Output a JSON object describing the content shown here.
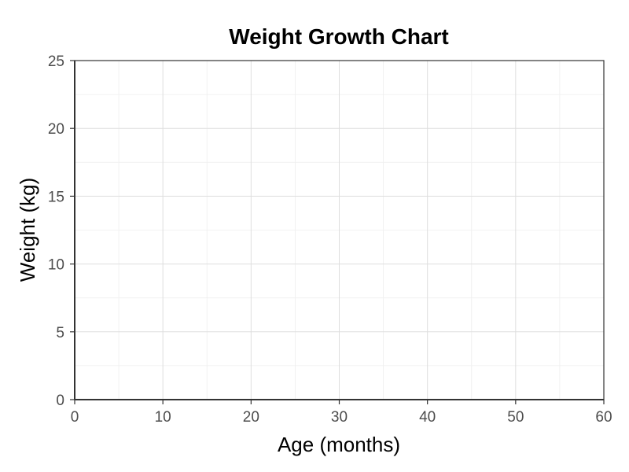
{
  "chart_data": {
    "type": "line",
    "title": "Weight Growth Chart",
    "xlabel": "Age (months)",
    "ylabel": "Weight (kg)",
    "xlim": [
      0,
      60
    ],
    "ylim": [
      0,
      25
    ],
    "x_ticks": [
      "0",
      "10",
      "20",
      "30",
      "40",
      "50",
      "60"
    ],
    "y_ticks": [
      "0",
      "5",
      "10",
      "15",
      "20",
      "25"
    ],
    "series": [],
    "grid": true,
    "legend": "none"
  },
  "colors": {
    "background": "#ffffff",
    "grid_major": "#dedede",
    "grid_minor": "#efefef",
    "axis": "#333333",
    "tick_label": "#4d4d4d"
  }
}
